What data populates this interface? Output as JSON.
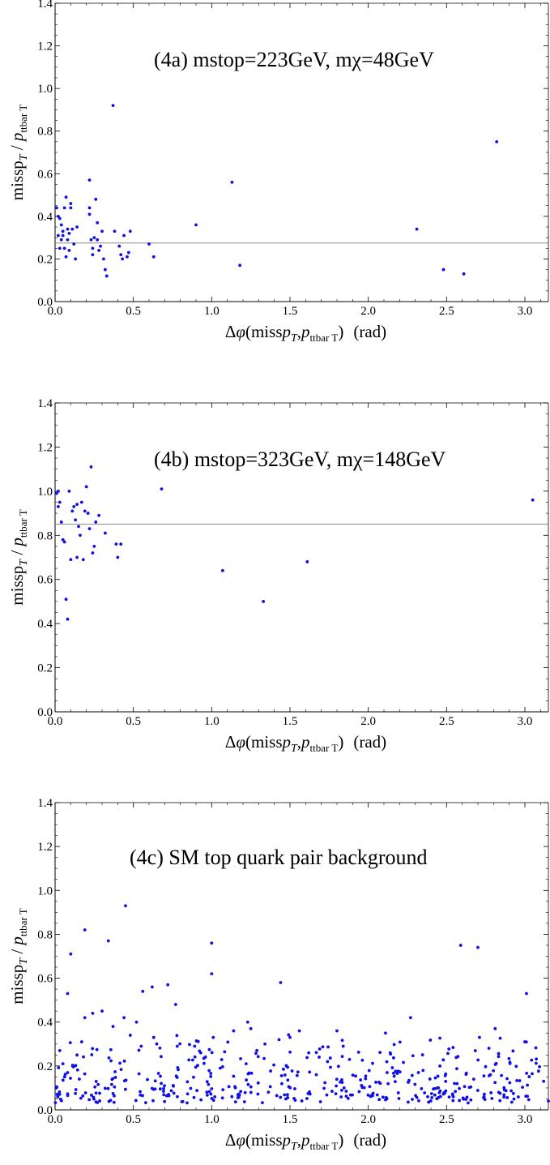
{
  "chart_data": [
    {
      "type": "scatter",
      "title": "(4a) mstop=223GeV, mχ=48GeV",
      "xlabel": "Δφ(miss p_T, p_ttbar T)  (rad)",
      "ylabel": "missp_T / p_ttbar T",
      "xlim": [
        0,
        3.15
      ],
      "ylim": [
        0,
        1.4
      ],
      "xticks": [
        "0.0",
        "0.5",
        "1.0",
        "1.5",
        "2.0",
        "2.5",
        "3.0"
      ],
      "yticks": [
        "0.0",
        "0.2",
        "0.4",
        "0.6",
        "0.8",
        "1.0",
        "1.2",
        "1.4"
      ],
      "hline": 0.275,
      "grid": false,
      "color": "#1010e6",
      "points": [
        [
          0.01,
          0.44
        ],
        [
          0.02,
          0.4
        ],
        [
          0.02,
          0.31
        ],
        [
          0.03,
          0.39
        ],
        [
          0.03,
          0.25
        ],
        [
          0.04,
          0.36
        ],
        [
          0.04,
          0.29
        ],
        [
          0.05,
          0.33
        ],
        [
          0.05,
          0.31
        ],
        [
          0.06,
          0.44
        ],
        [
          0.06,
          0.25
        ],
        [
          0.07,
          0.49
        ],
        [
          0.07,
          0.21
        ],
        [
          0.08,
          0.34
        ],
        [
          0.08,
          0.29
        ],
        [
          0.09,
          0.32
        ],
        [
          0.09,
          0.24
        ],
        [
          0.1,
          0.46
        ],
        [
          0.1,
          0.44
        ],
        [
          0.11,
          0.34
        ],
        [
          0.12,
          0.27
        ],
        [
          0.13,
          0.2
        ],
        [
          0.14,
          0.35
        ],
        [
          0.22,
          0.57
        ],
        [
          0.22,
          0.44
        ],
        [
          0.22,
          0.41
        ],
        [
          0.23,
          0.29
        ],
        [
          0.24,
          0.25
        ],
        [
          0.24,
          0.22
        ],
        [
          0.25,
          0.3
        ],
        [
          0.26,
          0.48
        ],
        [
          0.27,
          0.37
        ],
        [
          0.27,
          0.29
        ],
        [
          0.28,
          0.24
        ],
        [
          0.29,
          0.26
        ],
        [
          0.3,
          0.33
        ],
        [
          0.31,
          0.2
        ],
        [
          0.32,
          0.15
        ],
        [
          0.33,
          0.12
        ],
        [
          0.37,
          0.92
        ],
        [
          0.38,
          0.33
        ],
        [
          0.41,
          0.26
        ],
        [
          0.42,
          0.22
        ],
        [
          0.43,
          0.2
        ],
        [
          0.44,
          0.31
        ],
        [
          0.46,
          0.21
        ],
        [
          0.47,
          0.23
        ],
        [
          0.48,
          0.33
        ],
        [
          0.6,
          0.27
        ],
        [
          0.63,
          0.21
        ],
        [
          0.9,
          0.36
        ],
        [
          1.13,
          0.56
        ],
        [
          1.18,
          0.17
        ],
        [
          2.31,
          0.34
        ],
        [
          2.48,
          0.15
        ],
        [
          2.61,
          0.13
        ],
        [
          2.82,
          0.75
        ]
      ]
    },
    {
      "type": "scatter",
      "title": "(4b) mstop=323GeV, mχ=148GeV",
      "xlabel": "Δφ(miss p_T, p_ttbar T)  (rad)",
      "ylabel": "missp_T / p_ttbar T",
      "xlim": [
        0,
        3.15
      ],
      "ylim": [
        0,
        1.4
      ],
      "xticks": [
        "0.0",
        "0.5",
        "1.0",
        "1.5",
        "2.0",
        "2.5",
        "3.0"
      ],
      "yticks": [
        "0.0",
        "0.2",
        "0.4",
        "0.6",
        "0.8",
        "1.0",
        "1.2",
        "1.4"
      ],
      "hline": 0.85,
      "grid": false,
      "color": "#1010e6",
      "points": [
        [
          0.01,
          0.99
        ],
        [
          0.02,
          1.0
        ],
        [
          0.02,
          0.93
        ],
        [
          0.03,
          0.95
        ],
        [
          0.04,
          0.86
        ],
        [
          0.05,
          0.78
        ],
        [
          0.06,
          0.77
        ],
        [
          0.07,
          0.51
        ],
        [
          0.08,
          0.42
        ],
        [
          0.09,
          1.0
        ],
        [
          0.1,
          0.69
        ],
        [
          0.11,
          0.91
        ],
        [
          0.12,
          0.93
        ],
        [
          0.13,
          0.87
        ],
        [
          0.14,
          0.94
        ],
        [
          0.14,
          0.7
        ],
        [
          0.15,
          0.84
        ],
        [
          0.16,
          0.8
        ],
        [
          0.17,
          0.95
        ],
        [
          0.18,
          0.69
        ],
        [
          0.19,
          0.91
        ],
        [
          0.2,
          1.02
        ],
        [
          0.21,
          0.9
        ],
        [
          0.22,
          0.83
        ],
        [
          0.23,
          1.11
        ],
        [
          0.24,
          0.72
        ],
        [
          0.25,
          0.75
        ],
        [
          0.26,
          0.86
        ],
        [
          0.28,
          0.89
        ],
        [
          0.32,
          0.81
        ],
        [
          0.39,
          0.76
        ],
        [
          0.4,
          0.7
        ],
        [
          0.42,
          0.76
        ],
        [
          0.68,
          1.01
        ],
        [
          1.07,
          0.64
        ],
        [
          1.33,
          0.5
        ],
        [
          1.61,
          0.68
        ],
        [
          3.05,
          0.96
        ]
      ]
    },
    {
      "type": "scatter",
      "title": "(4c) SM top quark pair background",
      "xlabel": "Δφ(miss p_T, p_ttbar T)  (rad)",
      "ylabel": "missp_T / p_ttbar T",
      "xlim": [
        0,
        3.15
      ],
      "ylim": [
        0,
        1.4
      ],
      "xticks": [
        "0.0",
        "0.5",
        "1.0",
        "1.5",
        "2.0",
        "2.5",
        "3.0"
      ],
      "yticks": [
        "0.0",
        "0.2",
        "0.4",
        "0.6",
        "0.8",
        "1.0",
        "1.2",
        "1.4"
      ],
      "grid": false,
      "color": "#1010e6",
      "points": [
        [
          0.45,
          0.93
        ],
        [
          0.19,
          0.82
        ],
        [
          0.34,
          0.77
        ],
        [
          0.1,
          0.71
        ],
        [
          1.0,
          0.76
        ],
        [
          1.0,
          0.62
        ],
        [
          2.59,
          0.75
        ],
        [
          2.7,
          0.74
        ],
        [
          0.62,
          0.56
        ],
        [
          0.72,
          0.57
        ],
        [
          1.44,
          0.58
        ],
        [
          2.27,
          0.42
        ],
        [
          3.01,
          0.53
        ],
        [
          0.08,
          0.53
        ],
        [
          0.56,
          0.54
        ],
        [
          0.77,
          0.48
        ],
        [
          0.3,
          0.45
        ],
        [
          0.44,
          0.42
        ],
        [
          0.24,
          0.44
        ],
        [
          0.19,
          0.42
        ],
        [
          0.52,
          0.4
        ],
        [
          1.23,
          0.4
        ],
        [
          1.43,
          0.32
        ],
        [
          1.56,
          0.36
        ],
        [
          1.8,
          0.36
        ],
        [
          2.11,
          0.35
        ],
        [
          2.14,
          0.26
        ],
        [
          2.81,
          0.37
        ],
        [
          2.71,
          0.33
        ],
        [
          3.0,
          0.31
        ],
        [
          0.05,
          0.21
        ],
        [
          0.08,
          0.17
        ],
        [
          0.03,
          0.27
        ],
        [
          0.17,
          0.31
        ],
        [
          0.14,
          0.25
        ],
        [
          0.37,
          0.38
        ],
        [
          0.48,
          0.34
        ],
        [
          0.55,
          0.29
        ],
        [
          0.63,
          0.33
        ],
        [
          0.78,
          0.29
        ],
        [
          0.93,
          0.26
        ],
        [
          1.01,
          0.33
        ],
        [
          1.14,
          0.36
        ],
        [
          1.25,
          0.37
        ],
        [
          1.22,
          0.21
        ],
        [
          1.34,
          0.3
        ],
        [
          1.5,
          0.33
        ],
        [
          1.62,
          0.26
        ],
        [
          1.74,
          0.22
        ],
        [
          1.84,
          0.29
        ],
        [
          1.88,
          0.23
        ],
        [
          2.12,
          0.17
        ],
        [
          2.32,
          0.17
        ],
        [
          2.55,
          0.12
        ],
        [
          2.78,
          0.16
        ],
        [
          3.12,
          0.13
        ],
        [
          3.15,
          0.04
        ]
      ],
      "dense_region_note": ""
    }
  ],
  "axis_text": {
    "ylabel_main": "missp",
    "ylabel_sub1": "T",
    "ylabel_slash": " / ",
    "ylabel_p": "p",
    "ylabel_sub2": "ttbar T",
    "xlabel_delta": "Δ",
    "xlabel_phi": "φ",
    "xlabel_open": "(miss",
    "xlabel_p1": "p",
    "xlabel_sub1": "T",
    "xlabel_comma": ",",
    "xlabel_p2": "p",
    "xlabel_sub2": "ttbar T",
    "xlabel_close": ")",
    "xlabel_unit": "(rad)"
  }
}
